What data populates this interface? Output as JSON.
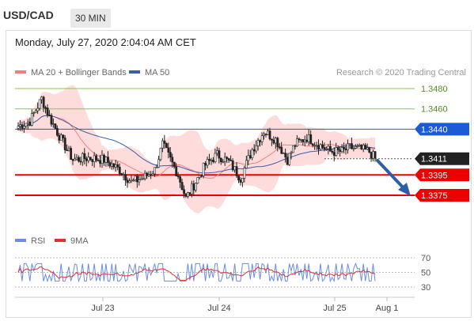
{
  "header": {
    "symbol": "USD/CAD",
    "timeframe": "30 MIN",
    "datetime": "Monday, July 27, 2020 2:04:04 AM CET"
  },
  "legend": {
    "ma20_bb": "MA 20 + Bollinger Bands",
    "ma50": "MA 50",
    "rsi": "RSI",
    "ma9": "9MA"
  },
  "copyright": "Research © 2020 Trading Central",
  "colors": {
    "ma20": "#f08080",
    "bands": "#ffd0d0",
    "ma50": "#3b5ea8",
    "candle_up": "#1a1a1a",
    "level_blue": "#1a5bd6",
    "level_red": "#ee0000",
    "level_green": "#8bc34a",
    "rsi": "#6b8de0",
    "rsi_ma": "#e03030",
    "arrow": "#2d5fa8"
  },
  "chart_data": [
    {
      "type": "candlestick",
      "ylim": [
        1.3352,
        1.3494
      ],
      "x_ticks": [
        "Jul 23",
        "Jul 24",
        "Jul 25",
        "Aug 1"
      ],
      "levels": [
        {
          "value": 1.348,
          "label": "1.3480",
          "style": "green"
        },
        {
          "value": 1.346,
          "label": "1.3460",
          "style": "green"
        },
        {
          "value": 1.344,
          "label": "1.3440",
          "style": "blue"
        },
        {
          "value": 1.3411,
          "label": "1.3411",
          "style": "current"
        },
        {
          "value": 1.3395,
          "label": "1.3395",
          "style": "red"
        },
        {
          "value": 1.3375,
          "label": "1.3375",
          "style": "red"
        }
      ],
      "current_price": 1.3411,
      "forecast_arrow": {
        "from": 1.341,
        "to": 1.3376
      }
    },
    {
      "type": "line",
      "name": "RSI",
      "ylim": [
        30,
        70
      ],
      "y_ticks": [
        "70",
        "50",
        "30"
      ]
    }
  ]
}
